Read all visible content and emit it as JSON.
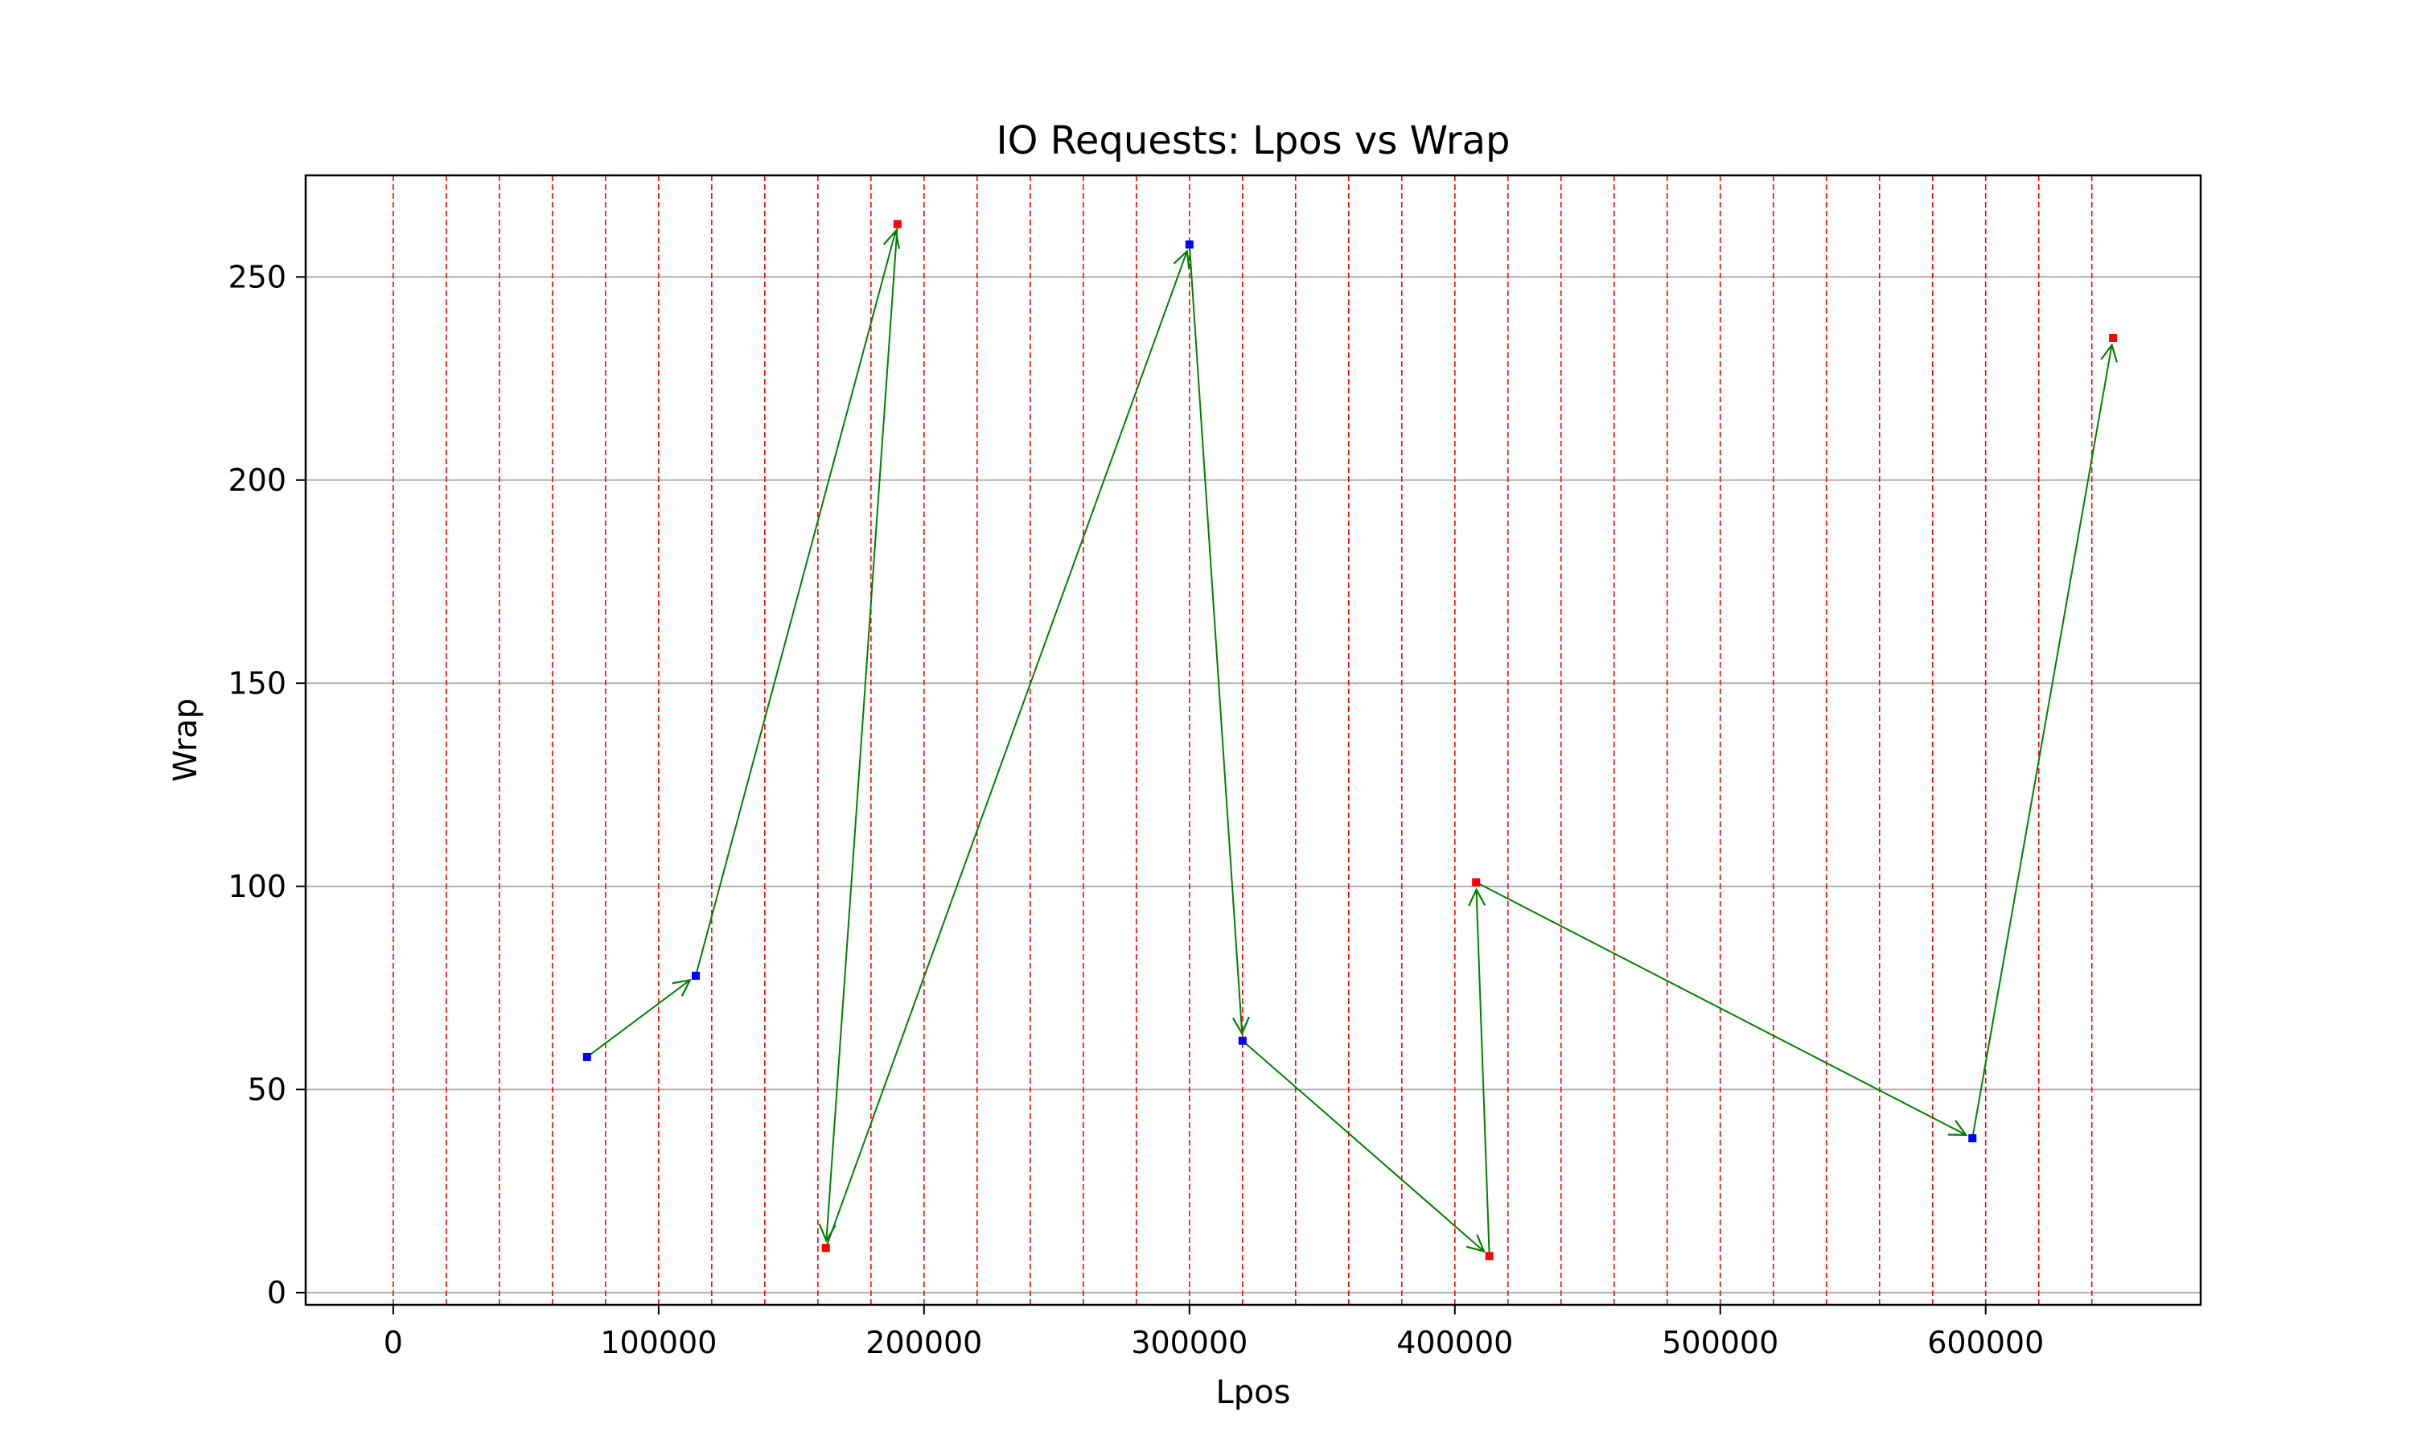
{
  "chart_data": {
    "type": "scatter",
    "title": "IO Requests: Lpos vs Wrap",
    "xlabel": "Lpos",
    "ylabel": "Wrap",
    "xlim": [
      -33000,
      681000
    ],
    "ylim": [
      -3,
      275
    ],
    "x_ticks": [
      0,
      100000,
      200000,
      300000,
      400000,
      500000,
      600000
    ],
    "x_tick_labels": [
      "0",
      "100000",
      "200000",
      "300000",
      "400000",
      "500000",
      "600000"
    ],
    "y_ticks": [
      0,
      50,
      100,
      150,
      200,
      250
    ],
    "y_tick_labels": [
      "0",
      "50",
      "100",
      "150",
      "200",
      "250"
    ],
    "grid": "horizontal",
    "vertical_reference_lines": {
      "start": 0,
      "step": 20000,
      "end": 640000,
      "style": "dashed",
      "color": "#ff0000"
    },
    "colors": {
      "forward": "#0000ff",
      "reverse": "#ff0000",
      "arrow": "#008000",
      "grid": "#b0b0b0"
    },
    "points": [
      {
        "x": 73000,
        "y": 58,
        "direction": "forward"
      },
      {
        "x": 114000,
        "y": 78,
        "direction": "forward"
      },
      {
        "x": 190000,
        "y": 263,
        "direction": "reverse"
      },
      {
        "x": 163000,
        "y": 11,
        "direction": "reverse"
      },
      {
        "x": 300000,
        "y": 258,
        "direction": "forward"
      },
      {
        "x": 320000,
        "y": 62,
        "direction": "forward"
      },
      {
        "x": 413000,
        "y": 9,
        "direction": "reverse"
      },
      {
        "x": 408000,
        "y": 101,
        "direction": "reverse"
      },
      {
        "x": 595000,
        "y": 38,
        "direction": "forward"
      },
      {
        "x": 648000,
        "y": 235,
        "direction": "reverse"
      }
    ]
  }
}
